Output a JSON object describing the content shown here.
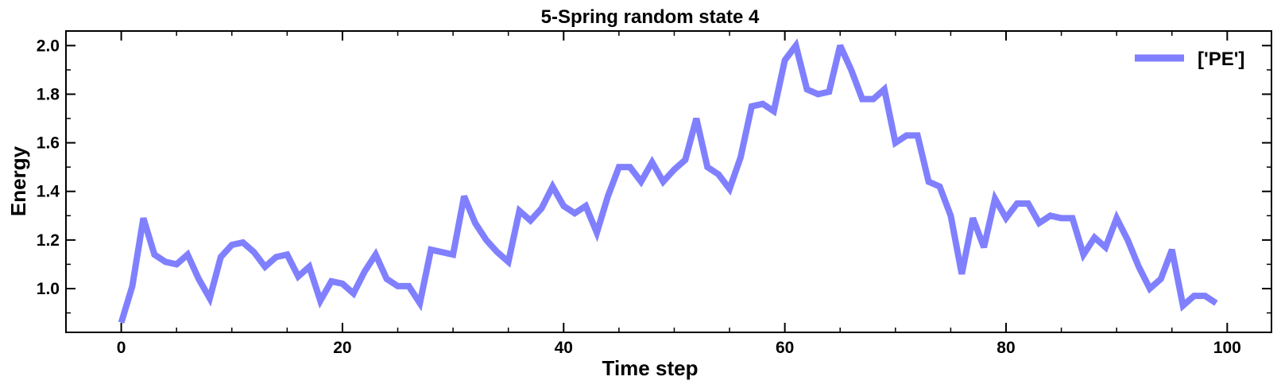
{
  "chart_data": {
    "type": "line",
    "title": "5-Spring random state 4",
    "xlabel": "Time step",
    "ylabel": "Energy",
    "xlim": [
      -5,
      104
    ],
    "ylim": [
      0.82,
      2.06
    ],
    "xticks": [
      0,
      20,
      40,
      60,
      80,
      100
    ],
    "yticks": [
      1.0,
      1.2,
      1.4,
      1.6,
      1.8,
      2.0
    ],
    "xtick_labels": [
      "0",
      "20",
      "40",
      "60",
      "80",
      "100"
    ],
    "ytick_labels": [
      "1.0",
      "1.2",
      "1.4",
      "1.6",
      "1.8",
      "2.0"
    ],
    "grid": false,
    "legend_position": "top-right",
    "series": [
      {
        "name": "['PE']",
        "color": "#8080ff",
        "x": [
          0,
          1,
          2,
          3,
          4,
          5,
          6,
          7,
          8,
          9,
          10,
          11,
          12,
          13,
          14,
          15,
          16,
          17,
          18,
          19,
          20,
          21,
          22,
          23,
          24,
          25,
          26,
          27,
          28,
          29,
          30,
          31,
          32,
          33,
          34,
          35,
          36,
          37,
          38,
          39,
          40,
          41,
          42,
          43,
          44,
          45,
          46,
          47,
          48,
          49,
          50,
          51,
          52,
          53,
          54,
          55,
          56,
          57,
          58,
          59,
          60,
          61,
          62,
          63,
          64,
          65,
          66,
          67,
          68,
          69,
          70,
          71,
          72,
          73,
          74,
          75,
          76,
          77,
          78,
          79,
          80,
          81,
          82,
          83,
          84,
          85,
          86,
          87,
          88,
          89,
          90,
          91,
          92,
          93,
          94,
          95,
          96,
          97,
          98,
          99
        ],
        "values": [
          0.86,
          1.01,
          1.29,
          1.14,
          1.11,
          1.1,
          1.14,
          1.04,
          0.96,
          1.13,
          1.18,
          1.19,
          1.15,
          1.09,
          1.13,
          1.14,
          1.05,
          1.09,
          0.95,
          1.03,
          1.02,
          0.98,
          1.07,
          1.14,
          1.04,
          1.01,
          1.01,
          0.94,
          1.16,
          1.15,
          1.14,
          1.38,
          1.27,
          1.2,
          1.15,
          1.11,
          1.32,
          1.28,
          1.33,
          1.42,
          1.34,
          1.31,
          1.34,
          1.23,
          1.38,
          1.5,
          1.5,
          1.44,
          1.52,
          1.44,
          1.49,
          1.53,
          1.7,
          1.5,
          1.47,
          1.41,
          1.54,
          1.75,
          1.76,
          1.73,
          1.94,
          2.0,
          1.82,
          1.8,
          1.81,
          2.0,
          1.9,
          1.78,
          1.78,
          1.82,
          1.6,
          1.63,
          1.63,
          1.44,
          1.42,
          1.3,
          1.06,
          1.29,
          1.17,
          1.37,
          1.29,
          1.35,
          1.35,
          1.27,
          1.3,
          1.29,
          1.29,
          1.14,
          1.21,
          1.17,
          1.29,
          1.2,
          1.09,
          1.0,
          1.04,
          1.16,
          0.93,
          0.97,
          0.97,
          0.94
        ]
      }
    ]
  }
}
